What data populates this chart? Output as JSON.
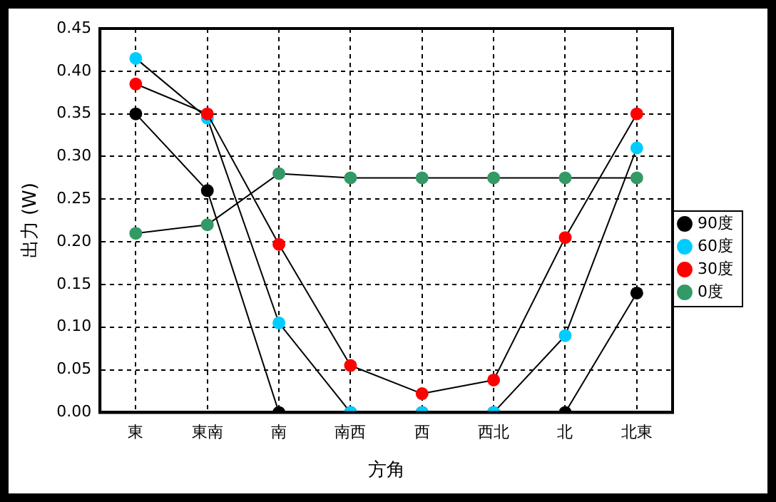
{
  "chart_data": {
    "type": "line",
    "xlabel": "方角",
    "ylabel": "出力 (W)",
    "categories": [
      "東",
      "東南",
      "南",
      "南西",
      "西",
      "西北",
      "北",
      "北東"
    ],
    "series": [
      {
        "name": "90度",
        "color": "#000000",
        "values": [
          0.35,
          0.26,
          0.0,
          0.0,
          0.0,
          0.0,
          0.0,
          0.14
        ]
      },
      {
        "name": "60度",
        "color": "#00ccff",
        "values": [
          0.415,
          0.345,
          0.105,
          0.0,
          0.0,
          0.0,
          0.09,
          0.31
        ]
      },
      {
        "name": "30度",
        "color": "#ff0000",
        "values": [
          0.385,
          0.35,
          0.197,
          0.055,
          0.022,
          0.038,
          0.205,
          0.35
        ]
      },
      {
        "name": "0度",
        "color": "#339966",
        "values": [
          0.21,
          0.22,
          0.28,
          0.275,
          0.275,
          0.275,
          0.275,
          0.275
        ]
      }
    ],
    "ylim": [
      0,
      0.45
    ],
    "yticks": [
      {
        "value": 0,
        "label": "0.00"
      },
      0.05,
      {
        "value": 0.1,
        "label": "0.10"
      },
      0.15,
      {
        "value": 0.2,
        "label": "0.20"
      },
      0.25,
      {
        "value": 0.3,
        "label": "0.30"
      },
      0.35,
      {
        "value": 0.4,
        "label": "0.40"
      },
      0.45
    ],
    "grid": true,
    "legend": "right",
    "marker": "circle",
    "line_style": "solid"
  }
}
